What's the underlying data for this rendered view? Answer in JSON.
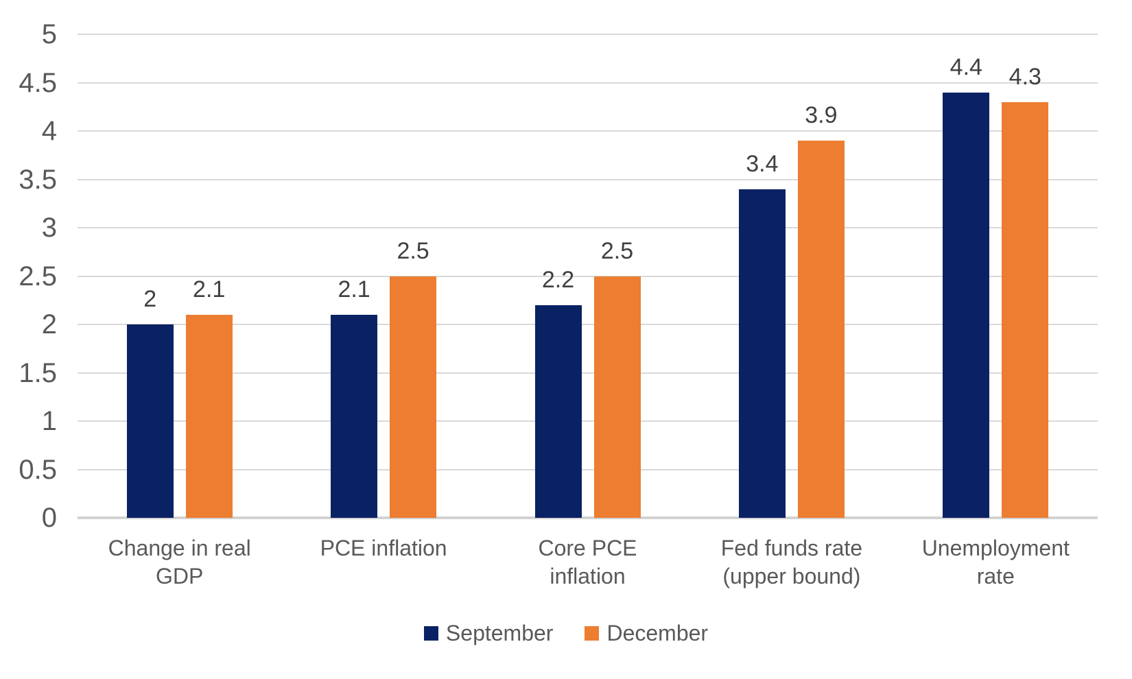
{
  "chart_data": {
    "type": "bar",
    "title": "",
    "xlabel": "",
    "ylabel": "",
    "categories": [
      "Change in real GDP",
      "PCE inflation",
      "Core PCE inflation",
      "Fed funds rate (upper bound)",
      "Unemployment rate"
    ],
    "series": [
      {
        "name": "September",
        "color": "#0A2263",
        "values": [
          2,
          2.1,
          2.2,
          3.4,
          4.4
        ],
        "labels": [
          "2",
          "2.1",
          "2.2",
          "3.4",
          "4.4"
        ]
      },
      {
        "name": "December",
        "color": "#ED7D31",
        "values": [
          2.1,
          2.5,
          2.5,
          3.9,
          4.3
        ],
        "labels": [
          "2.1",
          "2.5",
          "2.5",
          "3.9",
          "4.3"
        ]
      }
    ],
    "y_axis": {
      "min": 0,
      "max": 5,
      "step": 0.5,
      "tick_labels": [
        "5",
        "4.5",
        "4",
        "3.5",
        "3",
        "2.5",
        "2",
        "1.5",
        "1",
        "0.5",
        "0"
      ]
    },
    "grid": true,
    "legend_position": "bottom"
  },
  "colors": {
    "background": "#FFFFFF",
    "gridline": "#D9D9D9",
    "axis_line": "#D2D2D2",
    "tick_text": "#595959",
    "value_label_text": "#404040",
    "category_text": "#595959",
    "legend_text": "#595959"
  }
}
